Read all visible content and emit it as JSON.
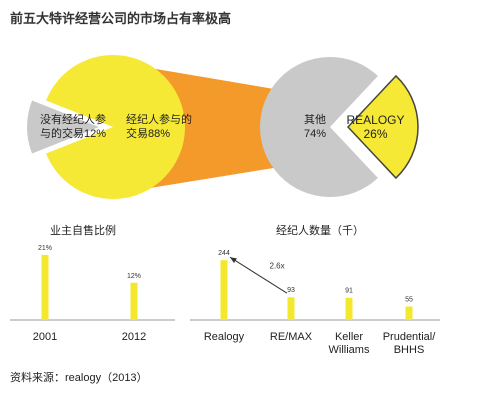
{
  "title": "前五大特许经营公司的市场占有率极高",
  "source": "资料来源：realogy（2013）",
  "chart_data": [
    {
      "type": "pie",
      "categories": [
        "没有经纪人参与的交易",
        "经纪人参与的交易"
      ],
      "values": [
        12,
        88
      ],
      "value_labels": [
        "12%",
        "88%"
      ],
      "colors": [
        "#c9c9c9",
        "#f6e936"
      ]
    },
    {
      "type": "pie",
      "categories": [
        "其他",
        "REALOGY"
      ],
      "values": [
        74,
        26
      ],
      "value_labels": [
        "74%",
        "26%"
      ],
      "colors": [
        "#c9c9c9",
        "#f6e936"
      ]
    },
    {
      "type": "bar",
      "title": "业主自售比例",
      "categories": [
        "2001",
        "2012"
      ],
      "values": [
        21,
        12
      ],
      "value_labels": [
        "21%",
        "12%"
      ],
      "color": "#f3e82e"
    },
    {
      "type": "bar",
      "title": "经纪人数量（千）",
      "categories": [
        "Realogy",
        "RE/MAX",
        "Keller Williams",
        "Prudential/BHHS"
      ],
      "values": [
        244,
        93,
        91,
        55
      ],
      "color": "#f3e82e",
      "annotation": "2.6x"
    }
  ]
}
